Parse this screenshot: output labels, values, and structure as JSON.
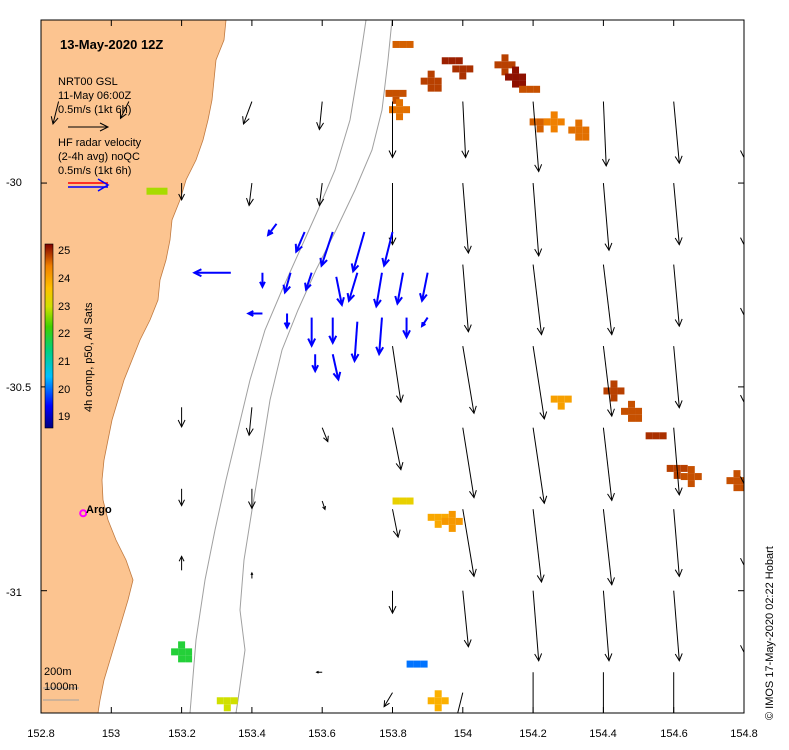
{
  "chart_data": {
    "type": "map",
    "title": "13-May-2020 12Z",
    "lon_range": [
      152.8,
      154.8
    ],
    "lat_range": [
      -31.3,
      -29.6
    ],
    "x_ticks": [
      "152.8",
      "153",
      "153.2",
      "153.4",
      "153.6",
      "153.8",
      "154",
      "154.2",
      "154.4",
      "154.6",
      "154.8"
    ],
    "y_ticks": [
      "-30",
      "-30.5",
      "-31"
    ],
    "legend": {
      "gsl_title": "NRT00 GSL",
      "gsl_date": "11-May 06:00Z",
      "gsl_scale": "0.5m/s (1kt 6h)",
      "hf_title": "HF radar velocity",
      "hf_sub": "(2-4h avg) noQC",
      "hf_scale": "0.5m/s (1kt 6h)"
    },
    "colorbar": {
      "label": "4h comp, p50, All Sats",
      "ticks": [
        "25",
        "24",
        "23",
        "22",
        "21",
        "20",
        "19"
      ],
      "range": [
        18.5,
        25
      ]
    },
    "argo_label": "Argo",
    "isobath_labels": [
      "200m",
      "1000m"
    ],
    "credit": "© IMOS 17-May-2020 02:22 Hobart",
    "sst_patches": [
      {
        "lon": 153.83,
        "lat": -29.66,
        "t": 24.4
      },
      {
        "lon": 153.81,
        "lat": -29.78,
        "t": 24.5
      },
      {
        "lon": 153.82,
        "lat": -29.82,
        "t": 24.3
      },
      {
        "lon": 153.91,
        "lat": -29.75,
        "t": 24.6
      },
      {
        "lon": 153.97,
        "lat": -29.7,
        "t": 24.8
      },
      {
        "lon": 154.0,
        "lat": -29.72,
        "t": 24.7
      },
      {
        "lon": 154.12,
        "lat": -29.71,
        "t": 24.6
      },
      {
        "lon": 154.15,
        "lat": -29.74,
        "t": 24.9
      },
      {
        "lon": 154.19,
        "lat": -29.77,
        "t": 24.5
      },
      {
        "lon": 154.22,
        "lat": -29.85,
        "t": 24.4
      },
      {
        "lon": 154.26,
        "lat": -29.85,
        "t": 24.2
      },
      {
        "lon": 154.33,
        "lat": -29.87,
        "t": 24.3
      },
      {
        "lon": 153.13,
        "lat": -30.02,
        "t": 22.6
      },
      {
        "lon": 154.28,
        "lat": -30.53,
        "t": 23.8
      },
      {
        "lon": 154.43,
        "lat": -30.51,
        "t": 24.6
      },
      {
        "lon": 154.48,
        "lat": -30.56,
        "t": 24.5
      },
      {
        "lon": 154.55,
        "lat": -30.62,
        "t": 24.7
      },
      {
        "lon": 154.61,
        "lat": -30.7,
        "t": 24.6
      },
      {
        "lon": 154.65,
        "lat": -30.72,
        "t": 24.5
      },
      {
        "lon": 154.78,
        "lat": -30.73,
        "t": 24.5
      },
      {
        "lon": 153.83,
        "lat": -30.78,
        "t": 23.1
      },
      {
        "lon": 153.93,
        "lat": -30.82,
        "t": 23.7
      },
      {
        "lon": 153.97,
        "lat": -30.83,
        "t": 23.9
      },
      {
        "lon": 153.2,
        "lat": -31.15,
        "t": 21.7
      },
      {
        "lon": 153.87,
        "lat": -31.18,
        "t": 19.9
      },
      {
        "lon": 153.33,
        "lat": -31.27,
        "t": 22.8
      },
      {
        "lon": 153.93,
        "lat": -31.27,
        "t": 23.6
      }
    ],
    "gsl_vectors": [
      {
        "lon": 152.85,
        "lat": -29.8,
        "u": -0.02,
        "v": -0.08
      },
      {
        "lon": 153.05,
        "lat": -29.8,
        "u": -0.03,
        "v": -0.06
      },
      {
        "lon": 153.4,
        "lat": -29.8,
        "u": -0.03,
        "v": -0.08
      },
      {
        "lon": 153.6,
        "lat": -29.8,
        "u": -0.01,
        "v": -0.1
      },
      {
        "lon": 153.8,
        "lat": -29.8,
        "u": 0.0,
        "v": -0.2
      },
      {
        "lon": 154.0,
        "lat": -29.8,
        "u": 0.01,
        "v": -0.2
      },
      {
        "lon": 154.2,
        "lat": -29.8,
        "u": 0.02,
        "v": -0.25
      },
      {
        "lon": 154.4,
        "lat": -29.8,
        "u": 0.01,
        "v": -0.23
      },
      {
        "lon": 154.6,
        "lat": -29.8,
        "u": 0.02,
        "v": -0.22
      },
      {
        "lon": 154.8,
        "lat": -29.8,
        "u": 0.0,
        "v": -0.2
      },
      {
        "lon": 153.2,
        "lat": -30.0,
        "u": 0.0,
        "v": -0.06
      },
      {
        "lon": 153.4,
        "lat": -30.0,
        "u": -0.01,
        "v": -0.08
      },
      {
        "lon": 153.6,
        "lat": -30.0,
        "u": -0.01,
        "v": -0.08
      },
      {
        "lon": 153.8,
        "lat": -30.0,
        "u": 0.0,
        "v": -0.22
      },
      {
        "lon": 154.0,
        "lat": -30.0,
        "u": 0.02,
        "v": -0.25
      },
      {
        "lon": 154.2,
        "lat": -30.0,
        "u": 0.02,
        "v": -0.26
      },
      {
        "lon": 154.4,
        "lat": -30.0,
        "u": 0.02,
        "v": -0.24
      },
      {
        "lon": 154.6,
        "lat": -30.0,
        "u": 0.02,
        "v": -0.22
      },
      {
        "lon": 154.8,
        "lat": -30.0,
        "u": 0.0,
        "v": -0.22
      },
      {
        "lon": 154.0,
        "lat": -30.2,
        "u": 0.02,
        "v": -0.24
      },
      {
        "lon": 154.2,
        "lat": -30.2,
        "u": 0.03,
        "v": -0.25
      },
      {
        "lon": 154.4,
        "lat": -30.2,
        "u": 0.03,
        "v": -0.25
      },
      {
        "lon": 154.6,
        "lat": -30.2,
        "u": 0.02,
        "v": -0.22
      },
      {
        "lon": 154.8,
        "lat": -30.2,
        "u": 0.0,
        "v": -0.18
      },
      {
        "lon": 153.8,
        "lat": -30.4,
        "u": 0.03,
        "v": -0.2
      },
      {
        "lon": 154.0,
        "lat": -30.4,
        "u": 0.04,
        "v": -0.24
      },
      {
        "lon": 154.2,
        "lat": -30.4,
        "u": 0.04,
        "v": -0.26
      },
      {
        "lon": 154.4,
        "lat": -30.4,
        "u": 0.03,
        "v": -0.25
      },
      {
        "lon": 154.6,
        "lat": -30.4,
        "u": 0.02,
        "v": -0.22
      },
      {
        "lon": 154.8,
        "lat": -30.4,
        "u": 0.0,
        "v": -0.2
      },
      {
        "lon": 153.2,
        "lat": -30.55,
        "u": 0.0,
        "v": -0.07
      },
      {
        "lon": 153.4,
        "lat": -30.55,
        "u": -0.01,
        "v": -0.1
      },
      {
        "lon": 153.6,
        "lat": -30.6,
        "u": 0.02,
        "v": -0.05
      },
      {
        "lon": 153.8,
        "lat": -30.6,
        "u": 0.03,
        "v": -0.15
      },
      {
        "lon": 154.0,
        "lat": -30.6,
        "u": 0.04,
        "v": -0.25
      },
      {
        "lon": 154.2,
        "lat": -30.6,
        "u": 0.04,
        "v": -0.27
      },
      {
        "lon": 154.4,
        "lat": -30.6,
        "u": 0.03,
        "v": -0.26
      },
      {
        "lon": 154.6,
        "lat": -30.6,
        "u": 0.02,
        "v": -0.24
      },
      {
        "lon": 154.8,
        "lat": -30.6,
        "u": 0.0,
        "v": -0.2
      },
      {
        "lon": 153.2,
        "lat": -30.75,
        "u": 0.0,
        "v": -0.06
      },
      {
        "lon": 153.4,
        "lat": -30.75,
        "u": 0.0,
        "v": -0.07
      },
      {
        "lon": 153.6,
        "lat": -30.78,
        "u": 0.01,
        "v": -0.03
      },
      {
        "lon": 153.8,
        "lat": -30.8,
        "u": 0.02,
        "v": -0.1
      },
      {
        "lon": 154.0,
        "lat": -30.8,
        "u": 0.04,
        "v": -0.24
      },
      {
        "lon": 154.2,
        "lat": -30.8,
        "u": 0.03,
        "v": -0.26
      },
      {
        "lon": 154.4,
        "lat": -30.8,
        "u": 0.03,
        "v": -0.27
      },
      {
        "lon": 154.6,
        "lat": -30.8,
        "u": 0.02,
        "v": -0.24
      },
      {
        "lon": 154.8,
        "lat": -30.8,
        "u": 0.0,
        "v": -0.2
      },
      {
        "lon": 153.2,
        "lat": -30.95,
        "u": 0.0,
        "v": 0.05
      },
      {
        "lon": 153.4,
        "lat": -30.97,
        "u": 0.0,
        "v": 0.02
      },
      {
        "lon": 153.8,
        "lat": -31.0,
        "u": 0.0,
        "v": -0.08
      },
      {
        "lon": 154.0,
        "lat": -31.0,
        "u": 0.02,
        "v": -0.2
      },
      {
        "lon": 154.2,
        "lat": -31.0,
        "u": 0.02,
        "v": -0.25
      },
      {
        "lon": 154.4,
        "lat": -31.0,
        "u": 0.02,
        "v": -0.25
      },
      {
        "lon": 154.6,
        "lat": -31.0,
        "u": 0.02,
        "v": -0.25
      },
      {
        "lon": 154.8,
        "lat": -31.0,
        "u": 0.0,
        "v": -0.22
      },
      {
        "lon": 153.6,
        "lat": -31.2,
        "u": -0.02,
        "v": 0.0
      },
      {
        "lon": 153.8,
        "lat": -31.25,
        "u": -0.03,
        "v": -0.05
      },
      {
        "lon": 154.0,
        "lat": -31.25,
        "u": -0.03,
        "v": -0.12
      },
      {
        "lon": 154.2,
        "lat": -31.2,
        "u": 0.0,
        "v": -0.2
      },
      {
        "lon": 154.4,
        "lat": -31.2,
        "u": 0.0,
        "v": -0.25
      },
      {
        "lon": 154.6,
        "lat": -31.2,
        "u": 0.0,
        "v": -0.23
      },
      {
        "lon": 154.8,
        "lat": -31.2,
        "u": 0.0,
        "v": -0.2
      }
    ],
    "hf_vectors": [
      {
        "lon": 153.47,
        "lat": -30.1,
        "u": -0.03,
        "v": -0.04
      },
      {
        "lon": 153.55,
        "lat": -30.12,
        "u": -0.03,
        "v": -0.07
      },
      {
        "lon": 153.63,
        "lat": -30.12,
        "u": -0.04,
        "v": -0.12
      },
      {
        "lon": 153.72,
        "lat": -30.12,
        "u": -0.04,
        "v": -0.14
      },
      {
        "lon": 153.8,
        "lat": -30.12,
        "u": -0.03,
        "v": -0.12
      },
      {
        "lon": 153.34,
        "lat": -30.22,
        "u": -0.13,
        "v": 0.0
      },
      {
        "lon": 153.51,
        "lat": -30.22,
        "u": -0.02,
        "v": -0.07
      },
      {
        "lon": 153.57,
        "lat": -30.22,
        "u": -0.02,
        "v": -0.06
      },
      {
        "lon": 153.64,
        "lat": -30.23,
        "u": 0.02,
        "v": -0.1
      },
      {
        "lon": 153.7,
        "lat": -30.22,
        "u": -0.03,
        "v": -0.1
      },
      {
        "lon": 153.77,
        "lat": -30.22,
        "u": -0.02,
        "v": -0.12
      },
      {
        "lon": 153.83,
        "lat": -30.22,
        "u": -0.02,
        "v": -0.11
      },
      {
        "lon": 153.9,
        "lat": -30.22,
        "u": -0.02,
        "v": -0.1
      },
      {
        "lon": 153.43,
        "lat": -30.22,
        "u": 0.0,
        "v": -0.05
      },
      {
        "lon": 153.43,
        "lat": -30.32,
        "u": -0.05,
        "v": 0.0
      },
      {
        "lon": 153.5,
        "lat": -30.32,
        "u": 0.0,
        "v": -0.05
      },
      {
        "lon": 153.57,
        "lat": -30.33,
        "u": 0.0,
        "v": -0.1
      },
      {
        "lon": 153.63,
        "lat": -30.33,
        "u": 0.0,
        "v": -0.09
      },
      {
        "lon": 153.7,
        "lat": -30.34,
        "u": -0.01,
        "v": -0.14
      },
      {
        "lon": 153.77,
        "lat": -30.33,
        "u": -0.01,
        "v": -0.13
      },
      {
        "lon": 153.84,
        "lat": -30.33,
        "u": 0.0,
        "v": -0.07
      },
      {
        "lon": 153.9,
        "lat": -30.33,
        "u": -0.02,
        "v": -0.03
      },
      {
        "lon": 153.58,
        "lat": -30.42,
        "u": 0.0,
        "v": -0.06
      },
      {
        "lon": 153.63,
        "lat": -30.42,
        "u": 0.02,
        "v": -0.09
      }
    ],
    "argo": {
      "lon": 152.92,
      "lat": -30.81
    }
  }
}
